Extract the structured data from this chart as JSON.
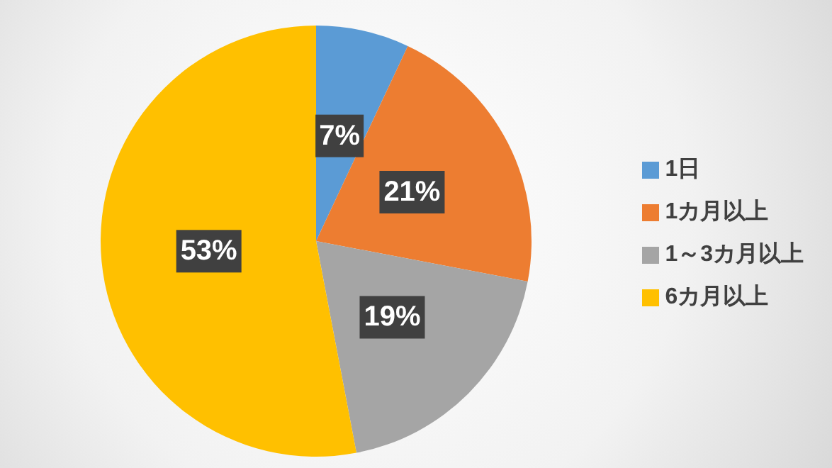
{
  "chart_data": {
    "type": "pie",
    "categories": [
      "1日",
      "1カ月以上",
      "1～3カ月以上",
      "6カ月以上"
    ],
    "values": [
      7,
      21,
      19,
      53
    ],
    "colors": [
      "#5b9bd5",
      "#ed7d31",
      "#a5a5a5",
      "#ffc000"
    ],
    "value_labels": [
      "7%",
      "21%",
      "19%",
      "53%"
    ],
    "legend": "right"
  }
}
